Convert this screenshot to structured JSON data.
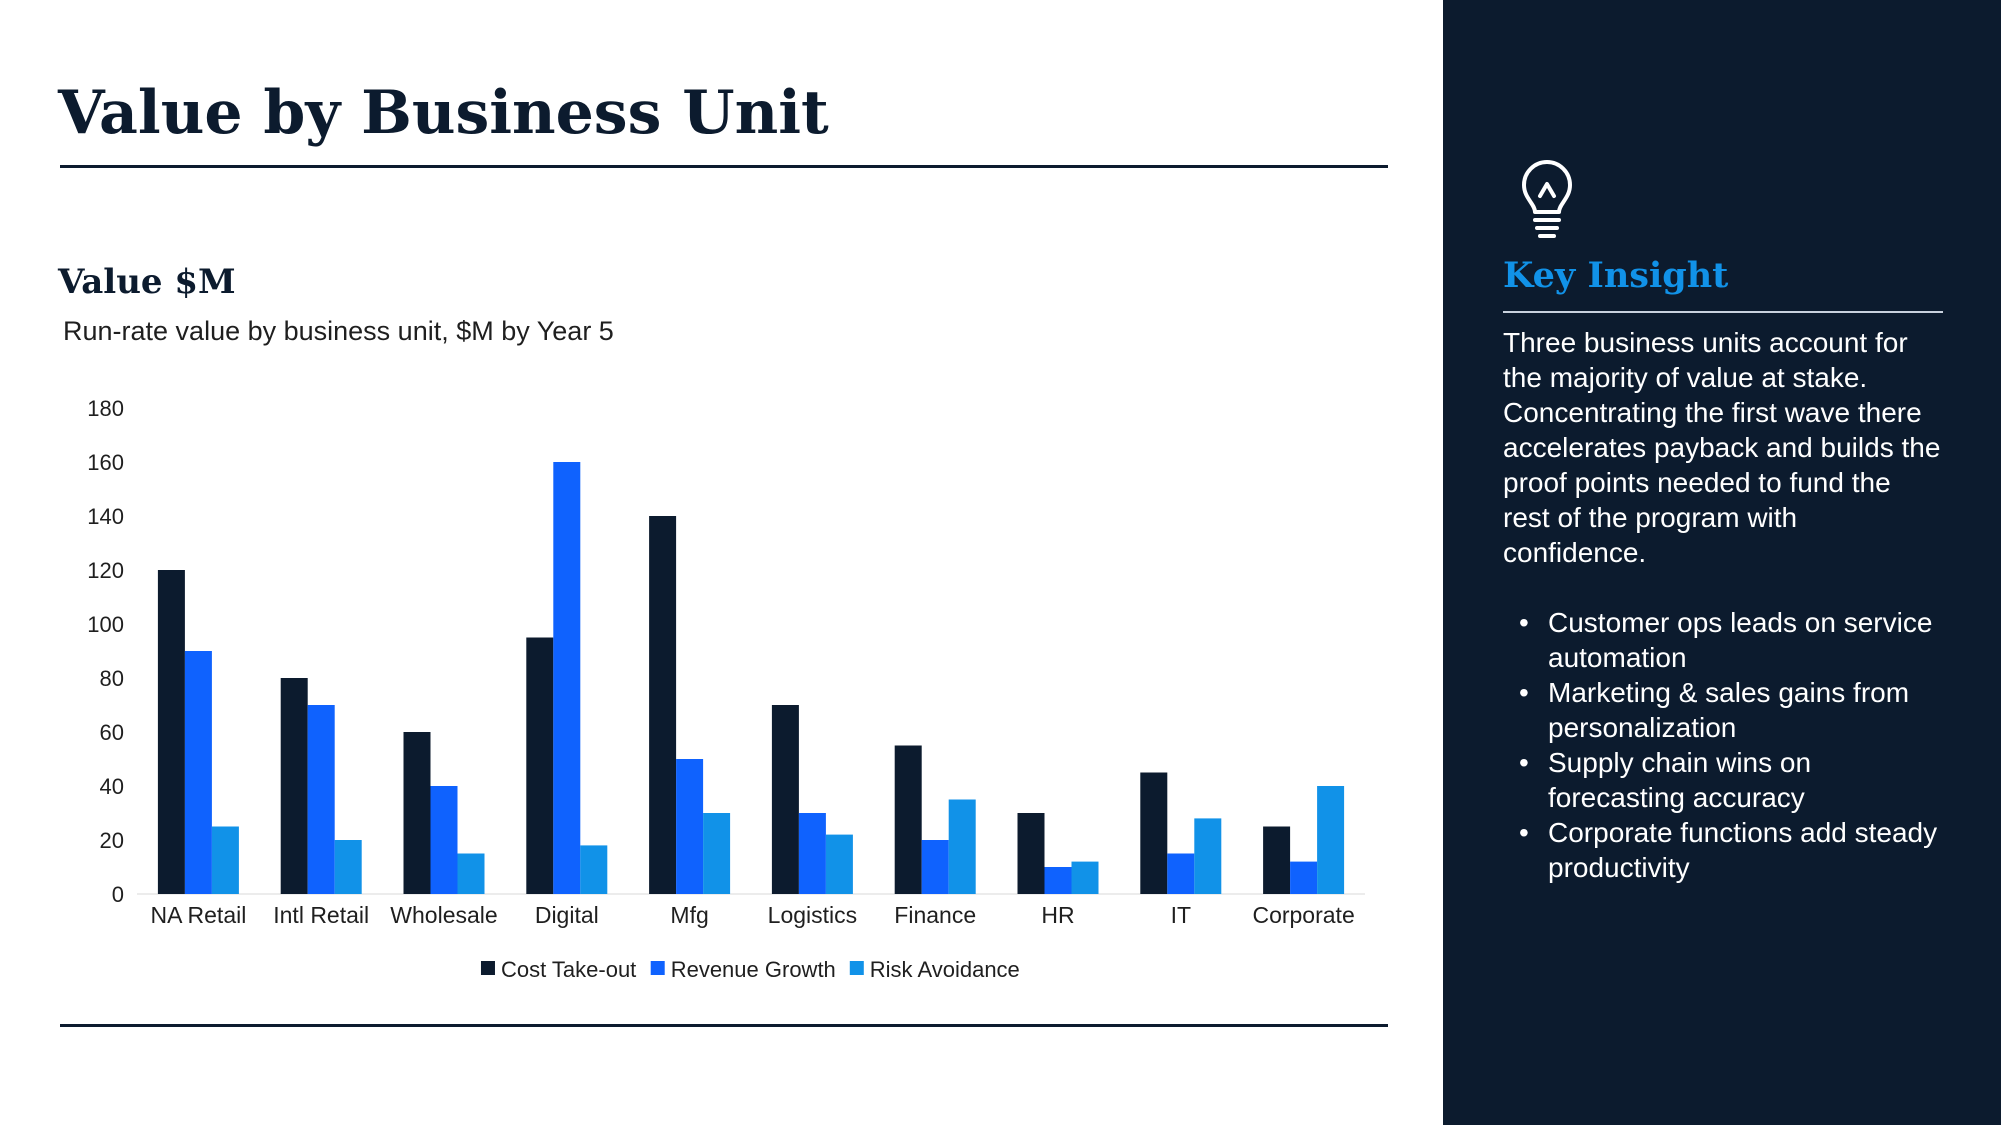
{
  "slide": {
    "title": "Value by Business Unit"
  },
  "chart_data": {
    "type": "bar",
    "title": "Value $M",
    "subtitle": "Run-rate value by business unit, $M by Year 5",
    "categories": [
      "NA Retail",
      "Intl Retail",
      "Wholesale",
      "Digital",
      "Mfg",
      "Logistics",
      "Finance",
      "HR",
      "IT",
      "Corporate"
    ],
    "series": [
      {
        "name": "Cost Take-out",
        "color": "#0c1b2e",
        "values": [
          120,
          80,
          60,
          95,
          140,
          70,
          55,
          30,
          45,
          25
        ]
      },
      {
        "name": "Revenue Growth",
        "color": "#0f62fe",
        "values": [
          90,
          70,
          40,
          160,
          50,
          30,
          20,
          10,
          15,
          12
        ]
      },
      {
        "name": "Risk Avoidance",
        "color": "#1192e8",
        "values": [
          25,
          20,
          15,
          18,
          30,
          22,
          35,
          12,
          28,
          40
        ]
      }
    ],
    "yticks": [
      0,
      20,
      40,
      60,
      80,
      100,
      120,
      140,
      160,
      180
    ],
    "ylim": [
      0,
      180
    ],
    "grid": false,
    "legend_position": "bottom"
  },
  "panel": {
    "icon": "lightbulb-icon",
    "title": "Key Insight",
    "body": "Three business units account for the majority of value at stake. Concentrating the first wave there accelerates payback and builds the proof points needed to fund the rest of the program with confidence.",
    "bullets": [
      "Customer ops leads on service automation",
      "Marketing & sales gains from personalization",
      "Supply chain wins on forecasting accuracy",
      "Corporate functions add steady productivity"
    ]
  },
  "colors": {
    "navy": "#0c1b2e",
    "accent": "#1192e8",
    "blue": "#0f62fe"
  }
}
